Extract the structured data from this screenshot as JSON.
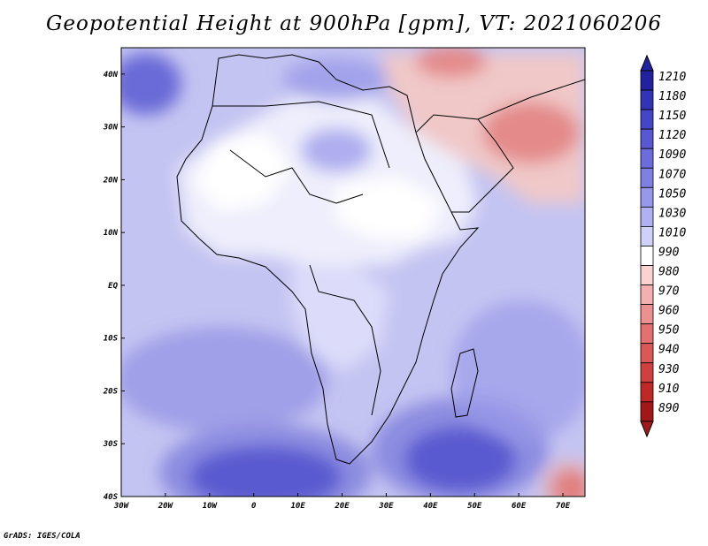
{
  "title": "Geopotential Height at 900hPa [gpm], VT: 2021060206",
  "credit": "GrADS: IGES/COLA",
  "map": {
    "region": "Africa",
    "lon_range": [
      -30,
      75
    ],
    "lat_range": [
      -40,
      45
    ],
    "lon_ticks": [
      "30W",
      "20W",
      "10W",
      "0",
      "10E",
      "20E",
      "30E",
      "40E",
      "50E",
      "60E",
      "70E"
    ],
    "lat_ticks": [
      "40N",
      "30N",
      "20N",
      "10N",
      "EQ",
      "10S",
      "20S",
      "30S",
      "40S"
    ],
    "fill_colors": {
      "ocean_base": "#cdcdf5",
      "deep_low": "#4040c8",
      "land_high": "#e6e6fa",
      "arabia": "#f0b4b4",
      "iran_high": "#e07878",
      "warm_corner": "#c83232"
    }
  },
  "colorbar": {
    "levels": [
      "1210",
      "1180",
      "1150",
      "1120",
      "1090",
      "1070",
      "1050",
      "1030",
      "1010",
      "990",
      "980",
      "970",
      "960",
      "950",
      "940",
      "930",
      "910",
      "890"
    ],
    "colors": [
      "#2222a0",
      "#3333b8",
      "#4545c8",
      "#5858d2",
      "#6c6cdc",
      "#8080e4",
      "#9797ec",
      "#b0b0f2",
      "#d0d0f8",
      "#ffffff",
      "#fad2d2",
      "#f4b0b0",
      "#ec9090",
      "#e47070",
      "#dc5858",
      "#d04040",
      "#c02828",
      "#a01818"
    ]
  }
}
